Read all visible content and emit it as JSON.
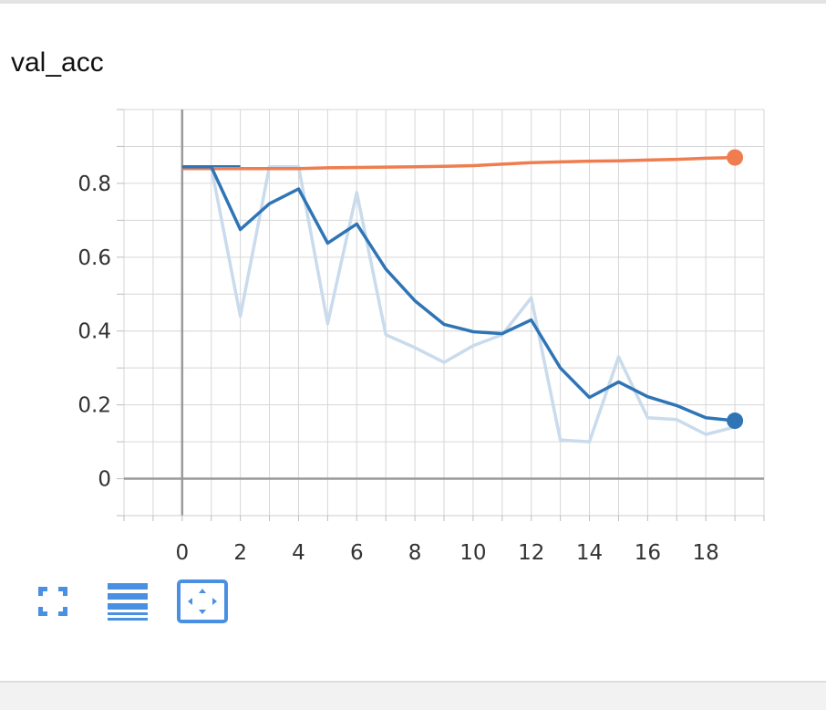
{
  "card": {
    "title": "val_acc"
  },
  "toolbar": {
    "buttons": [
      {
        "icon": "fullscreen-icon"
      },
      {
        "icon": "list-lines-icon"
      },
      {
        "icon": "fit-domain-icon",
        "active": true
      }
    ],
    "accent_color": "#4a90e2"
  },
  "chart_data": {
    "type": "line",
    "title": "val_acc",
    "xlabel": "",
    "ylabel": "",
    "xlim": [
      -2,
      20
    ],
    "ylim": [
      -0.1,
      1.0
    ],
    "x_ticks": [
      0,
      2,
      4,
      6,
      8,
      10,
      12,
      14,
      16,
      18
    ],
    "y_ticks": [
      0,
      0.2,
      0.4,
      0.6,
      0.8
    ],
    "y_tick_labels": [
      "0",
      "0.2",
      "0.4",
      "0.6",
      "0.8"
    ],
    "grid": true,
    "series": [
      {
        "color": "#ef7d4f",
        "smoothed": [
          0.84,
          0.84,
          0.84,
          0.84,
          0.84,
          0.842,
          0.843,
          0.844,
          0.845,
          0.846,
          0.848,
          0.852,
          0.856,
          0.858,
          0.86,
          0.861,
          0.863,
          0.865,
          0.868,
          0.87
        ],
        "x": [
          0,
          1,
          2,
          3,
          4,
          5,
          6,
          7,
          8,
          9,
          10,
          11,
          12,
          13,
          14,
          15,
          16,
          17,
          18,
          19
        ]
      },
      {
        "color": "#2f75b5",
        "raw_color": "#c9dbec",
        "x": [
          0,
          1,
          2,
          3,
          4,
          5,
          6,
          7,
          8,
          9,
          10,
          11,
          12,
          13,
          14,
          15,
          16,
          17,
          18,
          19
        ],
        "raw": [
          0.845,
          0.845,
          0.44,
          0.845,
          0.845,
          0.42,
          0.775,
          0.39,
          0.355,
          0.315,
          0.36,
          0.39,
          0.49,
          0.105,
          0.1,
          0.33,
          0.165,
          0.16,
          0.12,
          0.14
        ],
        "smoothed": [
          0.845,
          0.845,
          0.675,
          0.745,
          0.785,
          0.638,
          0.69,
          0.568,
          0.482,
          0.418,
          0.398,
          0.393,
          0.43,
          0.3,
          0.22,
          0.262,
          0.222,
          0.198,
          0.165,
          0.157
        ]
      }
    ],
    "extra_segment": {
      "color": "#2f75b5",
      "x": [
        0,
        2
      ],
      "y": [
        0.845,
        0.845
      ]
    }
  }
}
